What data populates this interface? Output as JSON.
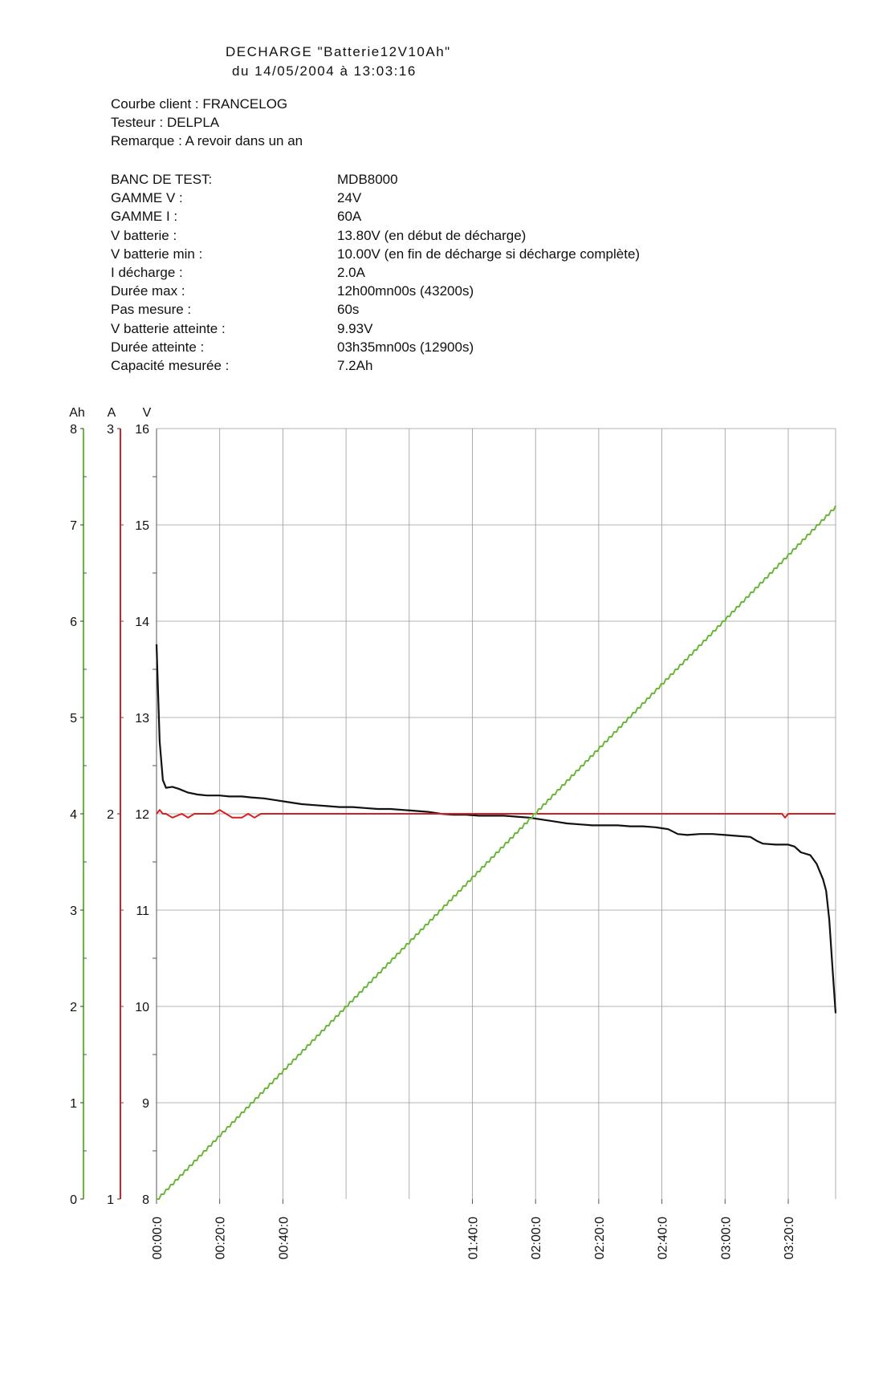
{
  "header": {
    "line1": "DECHARGE \"Batterie12V10Ah\"",
    "line2": "du 14/05/2004 à 13:03:16"
  },
  "client": {
    "courbe_label": "Courbe client :",
    "courbe_value": "FRANCELOG",
    "testeur_label": "Testeur :",
    "testeur_value": "DELPLA",
    "remarque_label": "Remarque :",
    "remarque_value": "A revoir dans un an"
  },
  "specs": [
    {
      "label": "BANC DE TEST:",
      "value": "MDB8000"
    },
    {
      "label": "GAMME V :",
      "value": "24V"
    },
    {
      "label": "GAMME I :",
      "value": "60A"
    },
    {
      "label": "V batterie :",
      "value": "13.80V (en début de décharge)"
    },
    {
      "label": "V batterie min :",
      "value": "10.00V (en fin de décharge si décharge complète)"
    },
    {
      "label": "I décharge :",
      "value": "2.0A"
    },
    {
      "label": "Durée max :",
      "value": "12h00mn00s (43200s)"
    },
    {
      "label": "Pas mesure :",
      "value": "60s"
    },
    {
      "label": "V batterie atteinte :",
      "value": "9.93V"
    },
    {
      "label": "Durée atteinte :",
      "value": "03h35mn00s (12900s)"
    },
    {
      "label": "Capacité mesurée :",
      "value": "7.2Ah"
    }
  ],
  "colors": {
    "voltage": "#111111",
    "current": "#d62020",
    "capacity": "#6ab838",
    "grid": "#9a9a9a"
  },
  "chart_data": {
    "type": "line",
    "x_unit": "minutes",
    "xlim": [
      0,
      215
    ],
    "x_tick_labels": [
      {
        "x": 0,
        "label": "00:00:0"
      },
      {
        "x": 20,
        "label": "00:20:0"
      },
      {
        "x": 40,
        "label": "00:40:0"
      },
      {
        "x": 100,
        "label": "01:40:0"
      },
      {
        "x": 120,
        "label": "02:00:0"
      },
      {
        "x": 140,
        "label": "02:20:0"
      },
      {
        "x": 160,
        "label": "02:40:0"
      },
      {
        "x": 180,
        "label": "03:00:0"
      },
      {
        "x": 200,
        "label": "03:20:0"
      }
    ],
    "axes": {
      "capacity": {
        "label": "Ah",
        "ylim": [
          0,
          8
        ],
        "ticks": [
          "0",
          "1",
          "2",
          "3",
          "4",
          "5",
          "6",
          "7",
          "8"
        ]
      },
      "current": {
        "label": "A",
        "ylim": [
          1,
          3
        ],
        "ticks": [
          "1",
          "2",
          "3"
        ]
      },
      "voltage": {
        "label": "V",
        "ylim": [
          8,
          16
        ],
        "ticks": [
          "8",
          "9",
          "10",
          "11",
          "12",
          "13",
          "14",
          "15",
          "16"
        ]
      }
    },
    "grid": true,
    "series": [
      {
        "key": "voltage",
        "axis": "voltage",
        "points": [
          [
            0,
            13.76
          ],
          [
            1,
            12.75
          ],
          [
            2,
            12.35
          ],
          [
            3,
            12.27
          ],
          [
            5,
            12.28
          ],
          [
            7,
            12.26
          ],
          [
            10,
            12.22
          ],
          [
            13,
            12.2
          ],
          [
            16,
            12.19
          ],
          [
            20,
            12.19
          ],
          [
            23,
            12.18
          ],
          [
            27,
            12.18
          ],
          [
            30,
            12.17
          ],
          [
            34,
            12.16
          ],
          [
            38,
            12.14
          ],
          [
            42,
            12.12
          ],
          [
            46,
            12.1
          ],
          [
            50,
            12.09
          ],
          [
            54,
            12.08
          ],
          [
            58,
            12.07
          ],
          [
            62,
            12.07
          ],
          [
            66,
            12.06
          ],
          [
            70,
            12.05
          ],
          [
            74,
            12.05
          ],
          [
            78,
            12.04
          ],
          [
            82,
            12.03
          ],
          [
            86,
            12.02
          ],
          [
            90,
            12.0
          ],
          [
            94,
            11.99
          ],
          [
            98,
            11.99
          ],
          [
            102,
            11.98
          ],
          [
            106,
            11.98
          ],
          [
            110,
            11.98
          ],
          [
            114,
            11.97
          ],
          [
            118,
            11.96
          ],
          [
            122,
            11.94
          ],
          [
            126,
            11.92
          ],
          [
            130,
            11.9
          ],
          [
            134,
            11.89
          ],
          [
            138,
            11.88
          ],
          [
            142,
            11.88
          ],
          [
            146,
            11.88
          ],
          [
            150,
            11.87
          ],
          [
            154,
            11.87
          ],
          [
            158,
            11.86
          ],
          [
            160,
            11.85
          ],
          [
            162,
            11.84
          ],
          [
            165,
            11.79
          ],
          [
            168,
            11.78
          ],
          [
            172,
            11.79
          ],
          [
            176,
            11.79
          ],
          [
            180,
            11.78
          ],
          [
            184,
            11.77
          ],
          [
            188,
            11.76
          ],
          [
            190,
            11.72
          ],
          [
            192,
            11.69
          ],
          [
            196,
            11.68
          ],
          [
            200,
            11.68
          ],
          [
            202,
            11.66
          ],
          [
            204,
            11.6
          ],
          [
            207,
            11.57
          ],
          [
            209,
            11.48
          ],
          [
            211,
            11.32
          ],
          [
            212,
            11.2
          ],
          [
            213,
            10.9
          ],
          [
            214,
            10.4
          ],
          [
            215,
            9.93
          ]
        ]
      },
      {
        "key": "current",
        "axis": "current",
        "points": [
          [
            0,
            2.0
          ],
          [
            1,
            2.01
          ],
          [
            2,
            2.0
          ],
          [
            3,
            2.0
          ],
          [
            5,
            1.99
          ],
          [
            8,
            2.0
          ],
          [
            10,
            1.99
          ],
          [
            12,
            2.0
          ],
          [
            15,
            2.0
          ],
          [
            18,
            2.0
          ],
          [
            20,
            2.01
          ],
          [
            22,
            2.0
          ],
          [
            24,
            1.99
          ],
          [
            27,
            1.99
          ],
          [
            29,
            2.0
          ],
          [
            31,
            1.99
          ],
          [
            33,
            2.0
          ],
          [
            36,
            2.0
          ],
          [
            40,
            2.0
          ],
          [
            44,
            2.0
          ],
          [
            46,
            2.0
          ],
          [
            48,
            2.0
          ],
          [
            52,
            2.0
          ],
          [
            56,
            2.0
          ],
          [
            60,
            2.0
          ],
          [
            70,
            2.0
          ],
          [
            80,
            2.0
          ],
          [
            90,
            2.0
          ],
          [
            100,
            2.0
          ],
          [
            110,
            2.0
          ],
          [
            120,
            2.0
          ],
          [
            130,
            2.0
          ],
          [
            140,
            2.0
          ],
          [
            150,
            2.0
          ],
          [
            160,
            2.0
          ],
          [
            170,
            2.0
          ],
          [
            180,
            2.0
          ],
          [
            190,
            2.0
          ],
          [
            198,
            2.0
          ],
          [
            199,
            1.99
          ],
          [
            200,
            2.0
          ],
          [
            208,
            2.0
          ],
          [
            215,
            2.0
          ]
        ]
      },
      {
        "key": "capacity",
        "axis": "capacity",
        "points": [
          [
            0,
            0
          ],
          [
            215,
            7.2
          ]
        ]
      }
    ]
  }
}
